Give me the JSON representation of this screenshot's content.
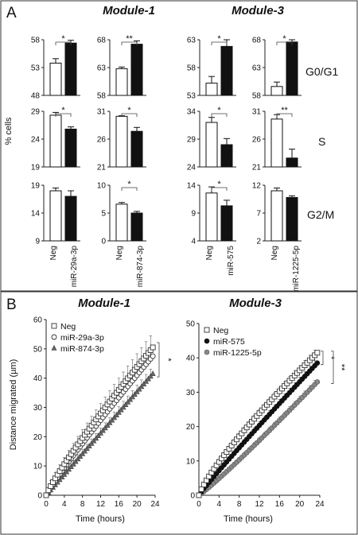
{
  "panels": {
    "A": {
      "letter": "A",
      "modules": [
        "Module-1",
        "Module-3"
      ],
      "ylabel": "% cells",
      "row_labels": [
        "G0/G1",
        "S",
        "G2/M"
      ],
      "groups_module1": [
        "Neg",
        "miR-29a-3p",
        "Neg",
        "miR-874-3p"
      ],
      "groups_module3": [
        "Neg",
        "miR-575",
        "Neg",
        "miR-1225-5p"
      ]
    },
    "B": {
      "letter": "B",
      "modules": [
        "Module-1",
        "Module-3"
      ],
      "ylabel": "Distance migrated (µm)",
      "xlabel": "Time (hours)"
    }
  },
  "chart_data": [
    {
      "type": "bar",
      "panel": "A",
      "module": "Module-1",
      "row": "G0/G1",
      "categories": [
        "Neg",
        "miR-29a-3p"
      ],
      "values": [
        53.8,
        57.4
      ],
      "errors": [
        0.8,
        0.5
      ],
      "ylim": [
        48,
        58
      ],
      "yticks": [
        48,
        53,
        58
      ],
      "significance": "*"
    },
    {
      "type": "bar",
      "panel": "A",
      "module": "Module-1",
      "row": "G0/G1",
      "categories": [
        "Neg",
        "miR-874-3p"
      ],
      "values": [
        62.8,
        67.2
      ],
      "errors": [
        0.3,
        0.6
      ],
      "ylim": [
        58,
        68
      ],
      "yticks": [
        58,
        63,
        68
      ],
      "significance": "**"
    },
    {
      "type": "bar",
      "panel": "A",
      "module": "Module-3",
      "row": "G0/G1",
      "categories": [
        "Neg",
        "miR-575"
      ],
      "values": [
        55.2,
        61.8
      ],
      "errors": [
        1.2,
        1.2
      ],
      "ylim": [
        53,
        63
      ],
      "yticks": [
        53,
        58,
        63
      ],
      "significance": "*"
    },
    {
      "type": "bar",
      "panel": "A",
      "module": "Module-3",
      "row": "G0/G1",
      "categories": [
        "Neg",
        "miR-1225-5p"
      ],
      "values": [
        59.6,
        67.6
      ],
      "errors": [
        0.8,
        0.4
      ],
      "ylim": [
        58,
        68
      ],
      "yticks": [
        58,
        63,
        68
      ],
      "significance": "*"
    },
    {
      "type": "bar",
      "panel": "A",
      "module": "Module-1",
      "row": "S",
      "categories": [
        "Neg",
        "miR-29a-3p"
      ],
      "values": [
        28.3,
        25.8
      ],
      "errors": [
        0.5,
        0.4
      ],
      "ylim": [
        19,
        29
      ],
      "yticks": [
        19,
        24,
        29
      ],
      "significance": "*"
    },
    {
      "type": "bar",
      "panel": "A",
      "module": "Module-1",
      "row": "S",
      "categories": [
        "Neg",
        "miR-874-3p"
      ],
      "values": [
        30.1,
        27.4
      ],
      "errors": [
        0.1,
        0.7
      ],
      "ylim": [
        21,
        31
      ],
      "yticks": [
        21,
        26,
        31
      ],
      "significance": "*"
    },
    {
      "type": "bar",
      "panel": "A",
      "module": "Module-3",
      "row": "S",
      "categories": [
        "Neg",
        "miR-575"
      ],
      "values": [
        32.0,
        28.0
      ],
      "errors": [
        0.9,
        1.1
      ],
      "ylim": [
        24,
        34
      ],
      "yticks": [
        24,
        29,
        34
      ],
      "significance": "*"
    },
    {
      "type": "bar",
      "panel": "A",
      "module": "Module-3",
      "row": "S",
      "categories": [
        "Neg",
        "miR-1225-5p"
      ],
      "values": [
        29.6,
        22.6
      ],
      "errors": [
        0.8,
        1.6
      ],
      "ylim": [
        21,
        31
      ],
      "yticks": [
        21,
        26,
        31
      ],
      "significance": "**"
    },
    {
      "type": "bar",
      "panel": "A",
      "module": "Module-1",
      "row": "G2/M",
      "categories": [
        "Neg",
        "miR-29a-3p"
      ],
      "values": [
        18.0,
        17.0
      ],
      "errors": [
        0.5,
        1.0
      ],
      "ylim": [
        9,
        19
      ],
      "yticks": [
        9,
        14,
        19
      ],
      "significance": ""
    },
    {
      "type": "bar",
      "panel": "A",
      "module": "Module-1",
      "row": "G2/M",
      "categories": [
        "Neg",
        "miR-874-3p"
      ],
      "values": [
        6.6,
        5.0
      ],
      "errors": [
        0.3,
        0.3
      ],
      "ylim": [
        0,
        10
      ],
      "yticks": [
        0,
        5,
        10
      ],
      "significance": "*"
    },
    {
      "type": "bar",
      "panel": "A",
      "module": "Module-3",
      "row": "G2/M",
      "categories": [
        "Neg",
        "miR-575"
      ],
      "values": [
        12.6,
        10.3
      ],
      "errors": [
        1.1,
        1.0
      ],
      "ylim": [
        4,
        14
      ],
      "yticks": [
        4,
        9,
        14
      ],
      "significance": "*"
    },
    {
      "type": "bar",
      "panel": "A",
      "module": "Module-3",
      "row": "G2/M",
      "categories": [
        "Neg",
        "miR-1225-5p"
      ],
      "values": [
        11.0,
        9.8
      ],
      "errors": [
        0.5,
        0.3
      ],
      "ylim": [
        2,
        12
      ],
      "yticks": [
        2,
        7,
        12
      ],
      "significance": ""
    },
    {
      "type": "line",
      "panel": "B",
      "module": "Module-1",
      "xlabel": "Time (hours)",
      "ylabel": "Distance migrated (µm)",
      "xlim": [
        0,
        24
      ],
      "ylim": [
        0,
        60
      ],
      "xticks": [
        0,
        4,
        8,
        12,
        16,
        20,
        24
      ],
      "yticks": [
        0,
        10,
        20,
        30,
        40,
        50,
        60
      ],
      "legend_position": "top-left",
      "significance": "*",
      "series": [
        {
          "name": "Neg",
          "marker": "open-square",
          "final": 50.5,
          "final_error": 5.0,
          "curve": 0.88
        },
        {
          "name": "miR-29a-3p",
          "marker": "open-circle",
          "final": 47.5,
          "final_error": 3.0,
          "curve": 0.92
        },
        {
          "name": "miR-874-3p",
          "marker": "filled-triangle",
          "final": 41.5,
          "final_error": 2.5,
          "curve": 1.0
        }
      ]
    },
    {
      "type": "line",
      "panel": "B",
      "module": "Module-3",
      "xlabel": "Time (hours)",
      "xlim": [
        0,
        24
      ],
      "ylim": [
        0,
        50
      ],
      "xticks": [
        0,
        4,
        8,
        12,
        16,
        20,
        24
      ],
      "yticks": [
        0,
        10,
        20,
        30,
        40,
        50
      ],
      "legend_position": "top-left",
      "significance": [
        "*",
        "**"
      ],
      "series": [
        {
          "name": "Neg",
          "marker": "open-square",
          "final": 41.5,
          "final_error": 1.5,
          "curve": 0.82
        },
        {
          "name": "miR-575",
          "marker": "filled-circle",
          "final": 38.5,
          "final_error": 1.5,
          "curve": 0.95
        },
        {
          "name": "miR-1225-5p",
          "marker": "filled-grey-circle",
          "final": 33.0,
          "final_error": 1.2,
          "curve": 1.08
        }
      ]
    }
  ]
}
